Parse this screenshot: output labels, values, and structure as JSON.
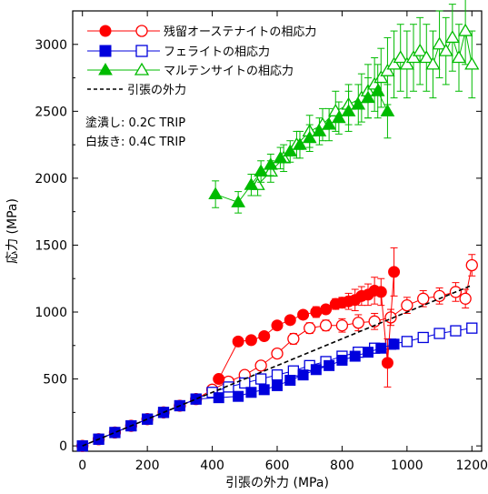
{
  "chart_data": {
    "type": "scatter",
    "xlabel": "引張の外力 (MPa)",
    "ylabel": "応力 (MPa)",
    "xlim": [
      -30,
      1230
    ],
    "ylim": [
      -40,
      3250
    ],
    "x_ticks": [
      "0",
      "200",
      "400",
      "600",
      "800",
      "1000",
      "1200"
    ],
    "y_ticks": [
      "0",
      "500",
      "1000",
      "1500",
      "2000",
      "2500",
      "3000"
    ],
    "x_tick_values": [
      0,
      200,
      400,
      600,
      800,
      1000,
      1200
    ],
    "y_tick_values": [
      0,
      500,
      1000,
      1500,
      2000,
      2500,
      3000
    ],
    "grid": false,
    "legend_position": "top-left",
    "notes": [
      "塗潰し: 0.2C TRIP",
      "白抜き: 0.4C TRIP"
    ],
    "series": [
      {
        "name": "残留オーステナイトの相応力",
        "key": "austenite-filled",
        "color": "#ff0000",
        "marker": "circle",
        "filled": true,
        "x": [
          420,
          480,
          520,
          560,
          600,
          640,
          680,
          720,
          750,
          780,
          800,
          820,
          840,
          860,
          880,
          900,
          920,
          940,
          960
        ],
        "y": [
          500,
          780,
          790,
          820,
          900,
          940,
          980,
          1000,
          1020,
          1060,
          1070,
          1080,
          1090,
          1120,
          1130,
          1160,
          1150,
          620,
          1300
        ],
        "errors": [
          0,
          0,
          0,
          0,
          0,
          0,
          0,
          40,
          0,
          40,
          40,
          60,
          80,
          70,
          80,
          100,
          100,
          180,
          180
        ]
      },
      {
        "name": "残留オーステナイトの相応力",
        "key": "austenite-open",
        "color": "#ff0000",
        "marker": "circle",
        "filled": false,
        "x": [
          0,
          50,
          100,
          150,
          200,
          250,
          300,
          350,
          400,
          450,
          500,
          550,
          600,
          650,
          700,
          750,
          800,
          850,
          900,
          950,
          1000,
          1050,
          1100,
          1150,
          1180,
          1200
        ],
        "y": [
          0,
          50,
          100,
          150,
          200,
          250,
          300,
          350,
          420,
          480,
          530,
          600,
          690,
          800,
          880,
          900,
          900,
          920,
          930,
          960,
          1050,
          1100,
          1120,
          1150,
          1100,
          1350
        ],
        "errors": [
          0,
          0,
          0,
          0,
          0,
          0,
          0,
          0,
          0,
          0,
          0,
          0,
          30,
          40,
          40,
          40,
          50,
          60,
          60,
          60,
          60,
          60,
          60,
          70,
          70,
          80
        ]
      },
      {
        "name": "フェライトの相応力",
        "key": "ferrite-filled",
        "color": "#0000dd",
        "marker": "square",
        "filled": true,
        "x": [
          0,
          50,
          100,
          150,
          200,
          250,
          300,
          350,
          420,
          480,
          520,
          560,
          600,
          640,
          680,
          720,
          760,
          800,
          840,
          880,
          920,
          960
        ],
        "y": [
          0,
          50,
          100,
          150,
          200,
          250,
          300,
          350,
          360,
          370,
          400,
          420,
          450,
          490,
          530,
          570,
          600,
          640,
          670,
          700,
          730,
          760
        ],
        "errors": []
      },
      {
        "name": "フェライトの相応力",
        "key": "ferrite-open",
        "color": "#0000dd",
        "marker": "square",
        "filled": false,
        "x": [
          0,
          50,
          100,
          150,
          200,
          250,
          300,
          350,
          400,
          450,
          500,
          550,
          600,
          650,
          700,
          750,
          800,
          850,
          900,
          950,
          1000,
          1050,
          1100,
          1150,
          1200
        ],
        "y": [
          0,
          50,
          100,
          150,
          200,
          250,
          300,
          350,
          400,
          440,
          470,
          500,
          530,
          560,
          600,
          630,
          670,
          700,
          730,
          760,
          780,
          810,
          840,
          860,
          880
        ],
        "errors": []
      },
      {
        "name": "マルテンサイトの相応力",
        "key": "martensite-filled",
        "color": "#00bb00",
        "marker": "triangle",
        "filled": true,
        "x": [
          410,
          480,
          520,
          550,
          580,
          610,
          640,
          670,
          700,
          730,
          760,
          790,
          820,
          850,
          880,
          910,
          940
        ],
        "y": [
          1880,
          1820,
          1950,
          2050,
          2100,
          2150,
          2200,
          2250,
          2300,
          2350,
          2400,
          2450,
          2500,
          2550,
          2600,
          2650,
          2500
        ],
        "errors": [
          100,
          80,
          80,
          80,
          80,
          80,
          80,
          100,
          100,
          100,
          120,
          120,
          150,
          150,
          150,
          200,
          200
        ]
      },
      {
        "name": "マルテンサイトの相応力",
        "key": "martensite-open",
        "color": "#00bb00",
        "marker": "triangle",
        "filled": false,
        "x": [
          540,
          580,
          620,
          660,
          700,
          740,
          780,
          820,
          860,
          880,
          900,
          920,
          940,
          960,
          980,
          1000,
          1020,
          1040,
          1060,
          1080,
          1100,
          1120,
          1140,
          1160,
          1180,
          1200
        ],
        "y": [
          1950,
          2050,
          2150,
          2250,
          2350,
          2400,
          2500,
          2550,
          2600,
          2650,
          2700,
          2750,
          2800,
          2850,
          2900,
          2850,
          2900,
          2950,
          2900,
          2850,
          3000,
          2950,
          3050,
          2900,
          3100,
          2850
        ],
        "errors": [
          80,
          80,
          100,
          100,
          120,
          120,
          150,
          150,
          180,
          200,
          200,
          220,
          250,
          250,
          250,
          250,
          250,
          250,
          250,
          250,
          250,
          250,
          250,
          250,
          250,
          250
        ]
      },
      {
        "name": "引張の外力",
        "key": "applied",
        "color": "#000000",
        "marker": "none",
        "line": "dashed",
        "x": [
          0,
          1200
        ],
        "y": [
          0,
          1200
        ]
      }
    ]
  }
}
